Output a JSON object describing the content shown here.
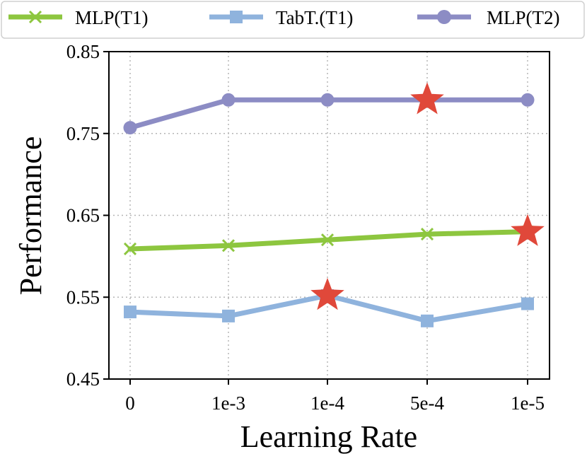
{
  "chart_data": {
    "type": "line",
    "title": "",
    "xlabel": "Learning Rate",
    "ylabel": "Performance",
    "categories": [
      "0",
      "1e-3",
      "1e-4",
      "5e-4",
      "1e-5"
    ],
    "yticks": [
      "0.45",
      "0.55",
      "0.65",
      "0.75",
      "0.85"
    ],
    "ylim": [
      0.45,
      0.85
    ],
    "grid": true,
    "legend_position": "top",
    "series": [
      {
        "name": "MLP(T1)",
        "color": "#8dc63f",
        "marker": "x",
        "values": [
          0.609,
          0.613,
          0.62,
          0.627,
          0.63
        ],
        "best_index": 4
      },
      {
        "name": "TabT.(T1)",
        "color": "#8fb3dd",
        "marker": "square",
        "values": [
          0.532,
          0.527,
          0.552,
          0.521,
          0.542
        ],
        "best_index": 2
      },
      {
        "name": "MLP(T2)",
        "color": "#8c8cc4",
        "marker": "circle",
        "values": [
          0.757,
          0.791,
          0.791,
          0.791,
          0.791
        ],
        "best_index": 3
      }
    ],
    "star_color": "#e0483a"
  }
}
